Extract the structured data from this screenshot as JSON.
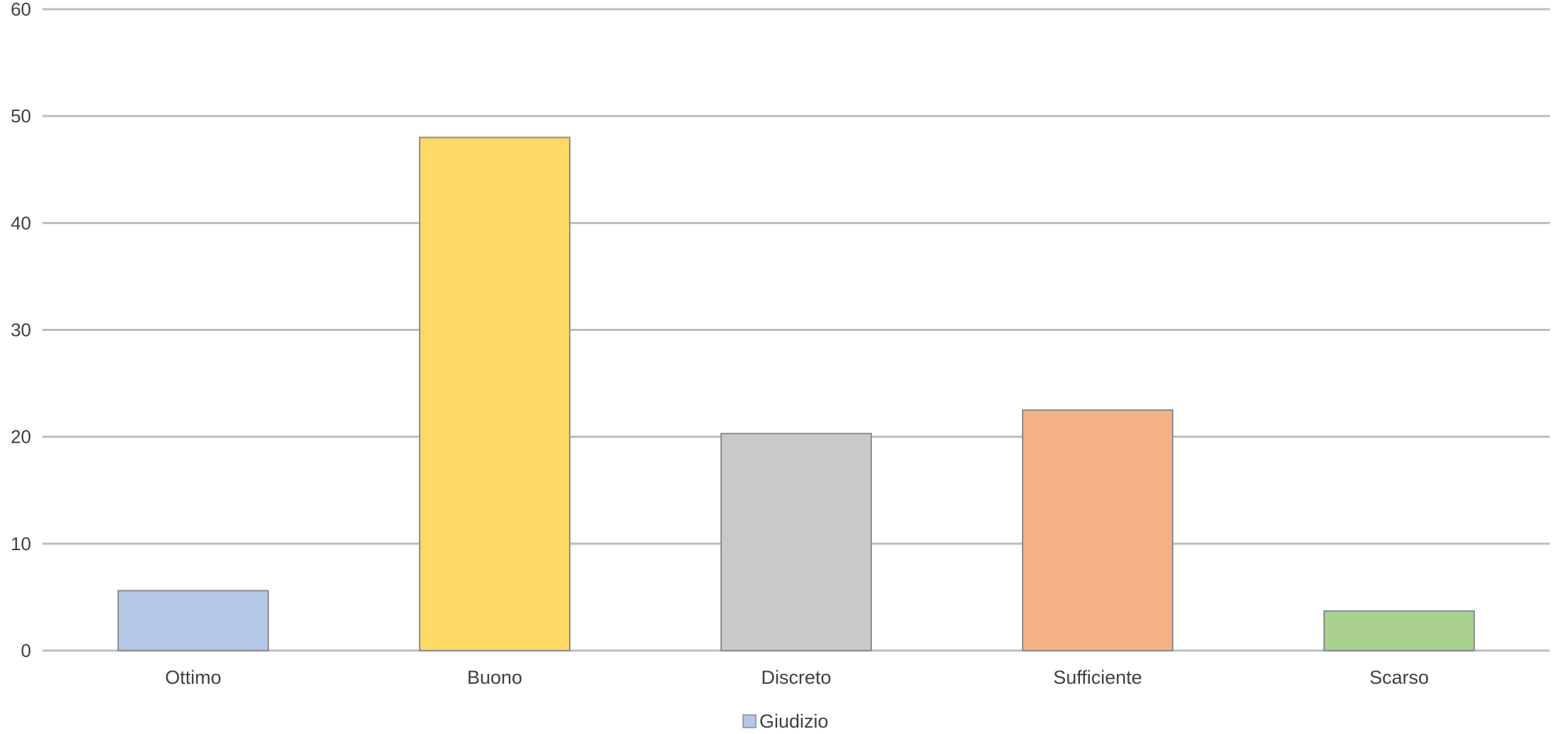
{
  "chart_data": {
    "type": "bar",
    "title": "",
    "xlabel": "",
    "ylabel": "",
    "categories": [
      "Ottimo",
      "Buono",
      "Discreto",
      "Sufficiente",
      "Scarso"
    ],
    "series": [
      {
        "name": "Giudizio",
        "values": [
          5.6,
          48.0,
          20.3,
          22.5,
          3.7
        ],
        "colors": [
          "#b4c7e7",
          "#ffd966",
          "#c9c9c9",
          "#f4b183",
          "#a9d18e"
        ]
      }
    ],
    "ylim": [
      0,
      60
    ],
    "yticks": [
      "0",
      "10",
      "20",
      "30",
      "40",
      "50",
      "60"
    ],
    "grid": true,
    "legend": {
      "position": "bottom",
      "entries": [
        {
          "label": "Giudizio",
          "color": "#b4c7e7"
        }
      ]
    }
  }
}
